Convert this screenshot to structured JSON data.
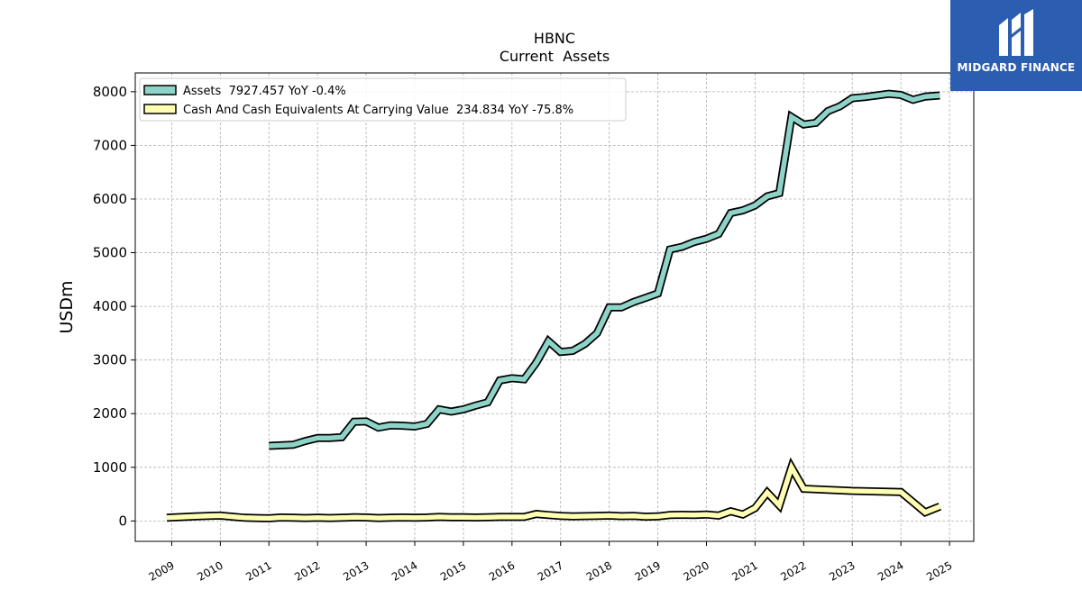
{
  "chart_data": {
    "type": "line",
    "title": "HBNC",
    "subtitle": "Current  Assets",
    "ylabel": "USDm",
    "xlabel": "",
    "xlim": [
      2008.25,
      2025.5
    ],
    "ylim": [
      -380,
      8350
    ],
    "yticks": [
      0,
      1000,
      2000,
      3000,
      4000,
      5000,
      6000,
      7000,
      8000
    ],
    "xticks": [
      2009,
      2010,
      2011,
      2012,
      2013,
      2014,
      2015,
      2016,
      2017,
      2018,
      2019,
      2020,
      2021,
      2022,
      2023,
      2024,
      2025
    ],
    "grid": true,
    "legend_position": "top-left",
    "series": [
      {
        "name": "Assets",
        "legend": "Assets  7927.457 YoY -0.4%",
        "color": "#8dd3c7",
        "points": [
          [
            2011.0,
            1400
          ],
          [
            2011.25,
            1410
          ],
          [
            2011.5,
            1420
          ],
          [
            2011.75,
            1490
          ],
          [
            2012.0,
            1545
          ],
          [
            2012.25,
            1545
          ],
          [
            2012.5,
            1560
          ],
          [
            2012.75,
            1850
          ],
          [
            2013.0,
            1855
          ],
          [
            2013.25,
            1740
          ],
          [
            2013.5,
            1780
          ],
          [
            2013.75,
            1775
          ],
          [
            2014.0,
            1760
          ],
          [
            2014.25,
            1810
          ],
          [
            2014.5,
            2080
          ],
          [
            2014.75,
            2040
          ],
          [
            2015.0,
            2080
          ],
          [
            2015.25,
            2150
          ],
          [
            2015.5,
            2210
          ],
          [
            2015.75,
            2620
          ],
          [
            2016.0,
            2660
          ],
          [
            2016.25,
            2640
          ],
          [
            2016.5,
            2950
          ],
          [
            2016.75,
            3350
          ],
          [
            2017.0,
            3150
          ],
          [
            2017.25,
            3170
          ],
          [
            2017.5,
            3300
          ],
          [
            2017.75,
            3500
          ],
          [
            2018.0,
            3980
          ],
          [
            2018.25,
            3980
          ],
          [
            2018.5,
            4080
          ],
          [
            2018.75,
            4160
          ],
          [
            2019.0,
            4240
          ],
          [
            2019.25,
            5060
          ],
          [
            2019.5,
            5110
          ],
          [
            2019.75,
            5200
          ],
          [
            2020.0,
            5260
          ],
          [
            2020.25,
            5350
          ],
          [
            2020.5,
            5740
          ],
          [
            2020.75,
            5790
          ],
          [
            2021.0,
            5880
          ],
          [
            2021.25,
            6050
          ],
          [
            2021.5,
            6110
          ],
          [
            2021.75,
            7530
          ],
          [
            2022.0,
            7390
          ],
          [
            2022.25,
            7420
          ],
          [
            2022.5,
            7640
          ],
          [
            2022.75,
            7730
          ],
          [
            2023.0,
            7880
          ],
          [
            2023.25,
            7900
          ],
          [
            2023.5,
            7930
          ],
          [
            2023.75,
            7960
          ],
          [
            2024.0,
            7940
          ],
          [
            2024.25,
            7850
          ],
          [
            2024.5,
            7910
          ],
          [
            2024.8,
            7930
          ]
        ]
      },
      {
        "name": "Cash And Cash Equivalents At Carrying Value",
        "legend": "Cash And Cash Equivalents At Carrying Value  234.834 YoY -75.8%",
        "color": "#ffffb3",
        "points": [
          [
            2008.9,
            60
          ],
          [
            2009.25,
            75
          ],
          [
            2009.5,
            85
          ],
          [
            2009.75,
            95
          ],
          [
            2010.0,
            100
          ],
          [
            2010.25,
            80
          ],
          [
            2010.5,
            60
          ],
          [
            2010.75,
            55
          ],
          [
            2011.0,
            50
          ],
          [
            2011.25,
            65
          ],
          [
            2011.5,
            60
          ],
          [
            2011.75,
            55
          ],
          [
            2012.0,
            60
          ],
          [
            2012.25,
            55
          ],
          [
            2012.5,
            60
          ],
          [
            2012.75,
            70
          ],
          [
            2013.0,
            65
          ],
          [
            2013.25,
            55
          ],
          [
            2013.5,
            60
          ],
          [
            2013.75,
            65
          ],
          [
            2014.0,
            60
          ],
          [
            2014.25,
            65
          ],
          [
            2014.5,
            75
          ],
          [
            2014.75,
            70
          ],
          [
            2015.0,
            70
          ],
          [
            2015.25,
            65
          ],
          [
            2015.5,
            70
          ],
          [
            2015.75,
            75
          ],
          [
            2016.0,
            75
          ],
          [
            2016.25,
            75
          ],
          [
            2016.5,
            130
          ],
          [
            2016.75,
            110
          ],
          [
            2017.0,
            95
          ],
          [
            2017.25,
            85
          ],
          [
            2017.5,
            90
          ],
          [
            2017.75,
            95
          ],
          [
            2018.0,
            100
          ],
          [
            2018.25,
            90
          ],
          [
            2018.5,
            95
          ],
          [
            2018.75,
            80
          ],
          [
            2019.0,
            85
          ],
          [
            2019.25,
            110
          ],
          [
            2019.5,
            115
          ],
          [
            2019.75,
            110
          ],
          [
            2020.0,
            120
          ],
          [
            2020.25,
            100
          ],
          [
            2020.5,
            180
          ],
          [
            2020.75,
            120
          ],
          [
            2021.0,
            240
          ],
          [
            2021.25,
            530
          ],
          [
            2021.5,
            290
          ],
          [
            2021.75,
            1000
          ],
          [
            2022.0,
            600
          ],
          [
            2023.0,
            560
          ],
          [
            2024.0,
            540
          ],
          [
            2024.5,
            160
          ],
          [
            2024.8,
            270
          ]
        ]
      }
    ]
  },
  "logo": {
    "text": "MIDGARD FINANCE",
    "color": "#2b5db0"
  }
}
